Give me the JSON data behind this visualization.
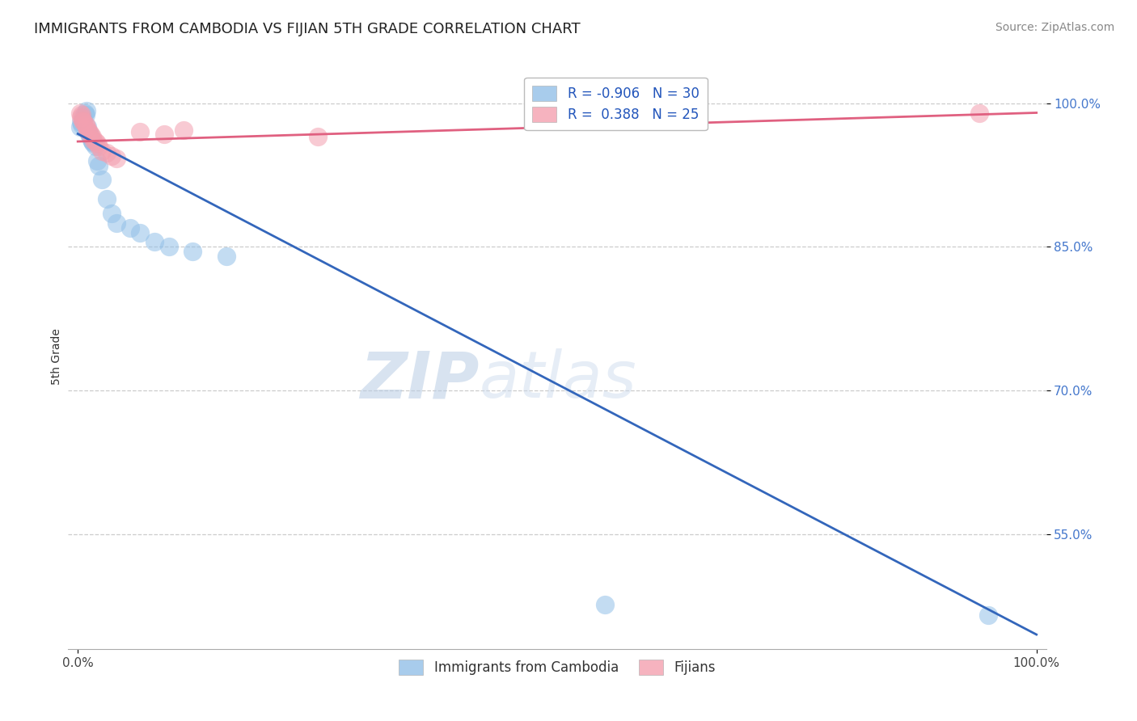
{
  "title": "IMMIGRANTS FROM CAMBODIA VS FIJIAN 5TH GRADE CORRELATION CHART",
  "source_text": "Source: ZipAtlas.com",
  "ylabel": "5th Grade",
  "watermark_zip": "ZIP",
  "watermark_atlas": "atlas",
  "xlim": [
    -0.01,
    1.01
  ],
  "ylim": [
    0.43,
    1.04
  ],
  "yticks": [
    0.55,
    0.7,
    0.85,
    1.0
  ],
  "ytick_labels": [
    "55.0%",
    "70.0%",
    "85.0%",
    "100.0%"
  ],
  "xticks": [
    0.0,
    1.0
  ],
  "xtick_labels": [
    "0.0%",
    "100.0%"
  ],
  "blue_label": "Immigrants from Cambodia",
  "pink_label": "Fijians",
  "blue_R": -0.906,
  "blue_N": 30,
  "pink_R": 0.388,
  "pink_N": 25,
  "blue_color": "#92C0E8",
  "pink_color": "#F4A0B0",
  "blue_line_color": "#3366BB",
  "pink_line_color": "#E06080",
  "blue_points_x": [
    0.002,
    0.003,
    0.004,
    0.005,
    0.006,
    0.007,
    0.008,
    0.009,
    0.01,
    0.011,
    0.012,
    0.013,
    0.014,
    0.015,
    0.016,
    0.018,
    0.02,
    0.022,
    0.025,
    0.03,
    0.035,
    0.04,
    0.055,
    0.065,
    0.08,
    0.095,
    0.12,
    0.155,
    0.55,
    0.95
  ],
  "blue_points_y": [
    0.975,
    0.98,
    0.978,
    0.985,
    0.982,
    0.99,
    0.988,
    0.992,
    0.975,
    0.97,
    0.968,
    0.965,
    0.962,
    0.96,
    0.958,
    0.955,
    0.94,
    0.935,
    0.92,
    0.9,
    0.885,
    0.875,
    0.87,
    0.865,
    0.855,
    0.85,
    0.845,
    0.84,
    0.476,
    0.465
  ],
  "pink_points_x": [
    0.002,
    0.003,
    0.004,
    0.005,
    0.006,
    0.008,
    0.009,
    0.01,
    0.012,
    0.013,
    0.015,
    0.016,
    0.018,
    0.02,
    0.022,
    0.025,
    0.03,
    0.035,
    0.04,
    0.065,
    0.09,
    0.11,
    0.25,
    0.63,
    0.94
  ],
  "pink_points_y": [
    0.99,
    0.985,
    0.988,
    0.982,
    0.98,
    0.978,
    0.975,
    0.972,
    0.97,
    0.968,
    0.965,
    0.962,
    0.96,
    0.958,
    0.955,
    0.95,
    0.948,
    0.945,
    0.942,
    0.97,
    0.968,
    0.972,
    0.965,
    0.985,
    0.99
  ],
  "blue_line_x0": 0.0,
  "blue_line_x1": 1.0,
  "blue_line_y0": 0.968,
  "blue_line_y1": 0.445,
  "pink_line_x0": 0.0,
  "pink_line_x1": 1.0,
  "pink_line_y0": 0.96,
  "pink_line_y1": 0.99,
  "title_fontsize": 13,
  "axis_label_fontsize": 10,
  "tick_fontsize": 11,
  "legend_fontsize": 12,
  "source_fontsize": 10
}
